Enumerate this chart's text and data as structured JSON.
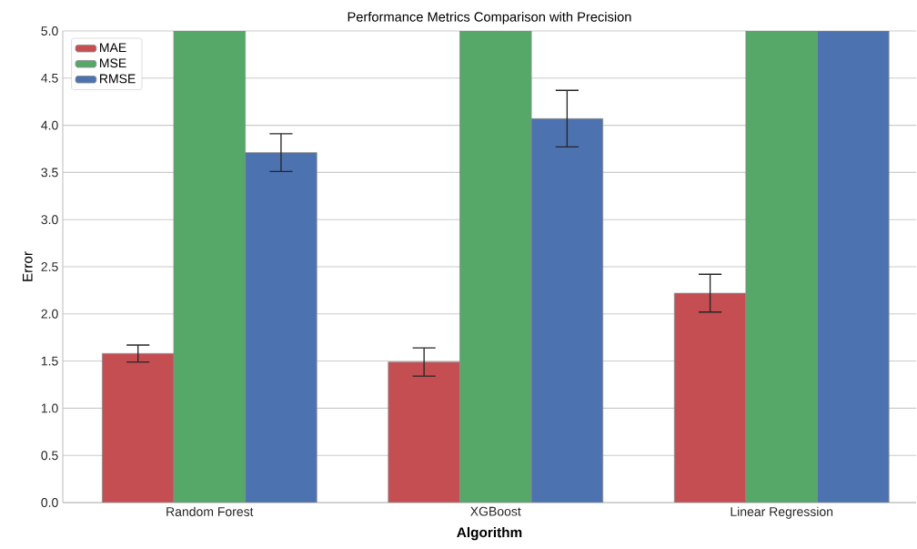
{
  "chart_data": {
    "type": "bar",
    "title": "Performance Metrics Comparison with Precision",
    "xlabel": "**Algorithm**",
    "ylabel": "Error",
    "categories": [
      "Random Forest",
      "XGBoost",
      "Linear Regression"
    ],
    "series": [
      {
        "name": "MAE",
        "color": "#c44e52",
        "values": [
          1.58,
          1.49,
          2.22
        ],
        "errors": [
          0.09,
          0.15,
          0.2
        ]
      },
      {
        "name": "MSE",
        "color": "#55a868",
        "values": [
          5.0,
          5.0,
          5.0
        ]
      },
      {
        "name": "RMSE",
        "color": "#4c72b0",
        "values": [
          3.71,
          4.07,
          5.0
        ],
        "errors": [
          0.2,
          0.3,
          null
        ]
      }
    ],
    "ylim": [
      0,
      5
    ],
    "yticks": [
      {
        "value": 0,
        "label": "0.0"
      },
      {
        "value": 0.5,
        "label": "0.5"
      },
      {
        "value": 1,
        "label": "1.0"
      },
      {
        "value": 1.5,
        "label": "1.5"
      },
      {
        "value": 2,
        "label": "2.0"
      },
      {
        "value": 2.5,
        "label": "2.5"
      },
      {
        "value": 3,
        "label": "3.0"
      },
      {
        "value": 3.5,
        "label": "3.5"
      },
      {
        "value": 4,
        "label": "4.0"
      },
      {
        "value": 4.5,
        "label": "4.5"
      },
      {
        "value": 5,
        "label": "5.0"
      }
    ],
    "grid": "y",
    "legend": "top left"
  }
}
